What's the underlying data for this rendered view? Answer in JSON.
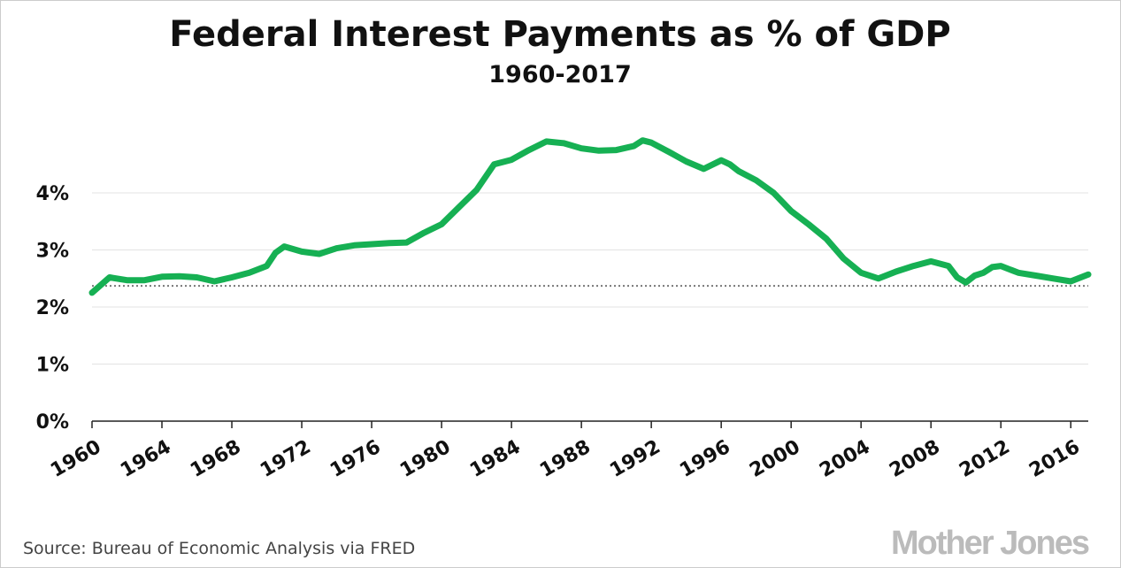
{
  "chart_data": {
    "type": "line",
    "title": "Federal Interest Payments as % of GDP",
    "subtitle": "1960-2017",
    "source": "Source: Bureau of Economic Analysis via FRED",
    "logo": "Mother Jones",
    "x": [
      1960,
      1961,
      1962,
      1963,
      1964,
      1965,
      1966,
      1967,
      1968,
      1969,
      1970,
      1970.5,
      1971,
      1972,
      1973,
      1974,
      1975,
      1976,
      1977,
      1978,
      1979,
      1980,
      1981,
      1982,
      1983,
      1984,
      1985,
      1986,
      1987,
      1988,
      1989,
      1990,
      1991,
      1991.5,
      1992,
      1993,
      1994,
      1995,
      1996,
      1996.5,
      1997,
      1998,
      1999,
      2000,
      2001,
      2002,
      2003,
      2004,
      2005,
      2006,
      2007,
      2008,
      2009,
      2009.5,
      2010,
      2010.5,
      2011,
      2011.5,
      2012,
      2013,
      2014,
      2015,
      2016,
      2017
    ],
    "series": [
      {
        "name": "Interest payments",
        "color": "#16b053",
        "values": [
          2.25,
          2.52,
          2.47,
          2.47,
          2.53,
          2.54,
          2.52,
          2.45,
          2.52,
          2.6,
          2.72,
          2.95,
          3.06,
          2.97,
          2.93,
          3.03,
          3.08,
          3.1,
          3.12,
          3.13,
          3.3,
          3.45,
          3.75,
          4.05,
          4.5,
          4.58,
          4.75,
          4.9,
          4.87,
          4.78,
          4.74,
          4.75,
          4.82,
          4.92,
          4.88,
          4.72,
          4.55,
          4.42,
          4.57,
          4.5,
          4.38,
          4.22,
          4.0,
          3.68,
          3.45,
          3.2,
          2.85,
          2.6,
          2.5,
          2.62,
          2.72,
          2.8,
          2.72,
          2.52,
          2.43,
          2.55,
          2.6,
          2.7,
          2.72,
          2.6,
          2.55,
          2.5,
          2.45,
          2.57
        ]
      }
    ],
    "reference_line": 2.37,
    "xlim": [
      1960,
      2017
    ],
    "xticks": [
      1960,
      1964,
      1968,
      1972,
      1976,
      1980,
      1984,
      1988,
      1992,
      1996,
      2000,
      2004,
      2008,
      2012,
      2016
    ],
    "ylim": [
      0,
      5.4
    ],
    "yticks": [
      {
        "value": 0,
        "label": "0%"
      },
      {
        "value": 1,
        "label": "1%"
      },
      {
        "value": 2,
        "label": "2%"
      },
      {
        "value": 3,
        "label": "3%"
      },
      {
        "value": 4,
        "label": "4%"
      }
    ],
    "grid": true
  }
}
